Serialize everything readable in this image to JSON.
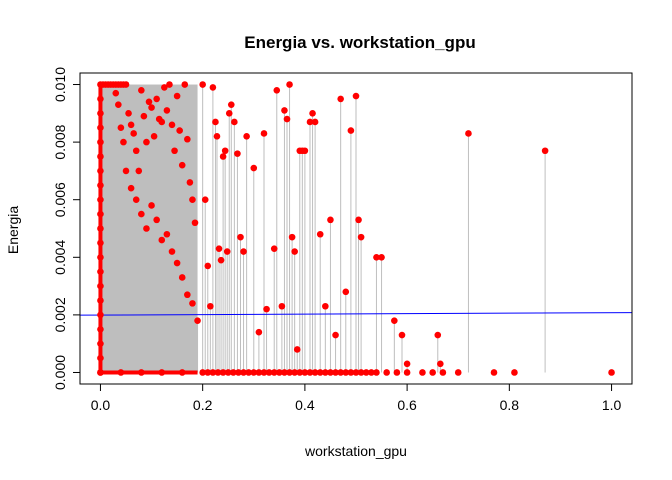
{
  "chart_data": {
    "type": "scatter",
    "title": "Energia vs. workstation_gpu",
    "xlabel": "workstation_gpu",
    "ylabel": "Energia",
    "xlim": [
      -0.04,
      1.04
    ],
    "ylim": [
      -0.0004,
      0.0104
    ],
    "x_ticks": [
      0.0,
      0.2,
      0.4,
      0.6,
      0.8,
      1.0
    ],
    "x_tick_labels": [
      "0.0",
      "0.2",
      "0.4",
      "0.6",
      "0.8",
      "1.0"
    ],
    "y_ticks": [
      0.0,
      0.002,
      0.004,
      0.006,
      0.008,
      0.01
    ],
    "y_tick_labels": [
      "0.000",
      "0.002",
      "0.004",
      "0.006",
      "0.008",
      "0.010"
    ],
    "grid": false,
    "colors": {
      "points": "#ff0000",
      "drop_lines": "#bebebe",
      "regression": "#0000ff"
    },
    "regression_line": {
      "x": [
        -0.04,
        1.04
      ],
      "y": [
        0.00199,
        0.00208
      ]
    },
    "dense_band": {
      "x_range": [
        0.0,
        0.19
      ],
      "y_range": [
        0.0,
        0.01
      ]
    },
    "points": [
      {
        "x": 0.0,
        "y": 0.01
      },
      {
        "x": 0.0,
        "y": 0.0095
      },
      {
        "x": 0.0,
        "y": 0.009
      },
      {
        "x": 0.0,
        "y": 0.0085
      },
      {
        "x": 0.0,
        "y": 0.008
      },
      {
        "x": 0.0,
        "y": 0.0075
      },
      {
        "x": 0.0,
        "y": 0.007
      },
      {
        "x": 0.0,
        "y": 0.0065
      },
      {
        "x": 0.0,
        "y": 0.006
      },
      {
        "x": 0.0,
        "y": 0.0055
      },
      {
        "x": 0.0,
        "y": 0.005
      },
      {
        "x": 0.0,
        "y": 0.0045
      },
      {
        "x": 0.0,
        "y": 0.004
      },
      {
        "x": 0.0,
        "y": 0.0035
      },
      {
        "x": 0.0,
        "y": 0.003
      },
      {
        "x": 0.0,
        "y": 0.0025
      },
      {
        "x": 0.0,
        "y": 0.002
      },
      {
        "x": 0.0,
        "y": 0.0015
      },
      {
        "x": 0.0,
        "y": 0.001
      },
      {
        "x": 0.0,
        "y": 0.0005
      },
      {
        "x": 0.0,
        "y": 0.0
      },
      {
        "x": 0.005,
        "y": 0.01
      },
      {
        "x": 0.01,
        "y": 0.01
      },
      {
        "x": 0.015,
        "y": 0.01
      },
      {
        "x": 0.02,
        "y": 0.01
      },
      {
        "x": 0.025,
        "y": 0.01
      },
      {
        "x": 0.03,
        "y": 0.01
      },
      {
        "x": 0.035,
        "y": 0.01
      },
      {
        "x": 0.04,
        "y": 0.01
      },
      {
        "x": 0.045,
        "y": 0.01
      },
      {
        "x": 0.05,
        "y": 0.01
      },
      {
        "x": 0.03,
        "y": 0.0097
      },
      {
        "x": 0.035,
        "y": 0.0093
      },
      {
        "x": 0.04,
        "y": 0.0085
      },
      {
        "x": 0.045,
        "y": 0.008
      },
      {
        "x": 0.055,
        "y": 0.009
      },
      {
        "x": 0.06,
        "y": 0.0086
      },
      {
        "x": 0.065,
        "y": 0.0083
      },
      {
        "x": 0.07,
        "y": 0.0077
      },
      {
        "x": 0.075,
        "y": 0.007
      },
      {
        "x": 0.08,
        "y": 0.0098
      },
      {
        "x": 0.085,
        "y": 0.0089
      },
      {
        "x": 0.09,
        "y": 0.008
      },
      {
        "x": 0.095,
        "y": 0.0094
      },
      {
        "x": 0.1,
        "y": 0.0092
      },
      {
        "x": 0.105,
        "y": 0.0082
      },
      {
        "x": 0.11,
        "y": 0.0095
      },
      {
        "x": 0.115,
        "y": 0.0088
      },
      {
        "x": 0.12,
        "y": 0.0087
      },
      {
        "x": 0.125,
        "y": 0.0099
      },
      {
        "x": 0.13,
        "y": 0.0091
      },
      {
        "x": 0.135,
        "y": 0.01
      },
      {
        "x": 0.14,
        "y": 0.0086
      },
      {
        "x": 0.145,
        "y": 0.0077
      },
      {
        "x": 0.15,
        "y": 0.0096
      },
      {
        "x": 0.155,
        "y": 0.0084
      },
      {
        "x": 0.16,
        "y": 0.0072
      },
      {
        "x": 0.165,
        "y": 0.01
      },
      {
        "x": 0.17,
        "y": 0.0081
      },
      {
        "x": 0.175,
        "y": 0.0066
      },
      {
        "x": 0.18,
        "y": 0.006
      },
      {
        "x": 0.185,
        "y": 0.0052
      },
      {
        "x": 0.05,
        "y": 0.007
      },
      {
        "x": 0.06,
        "y": 0.0064
      },
      {
        "x": 0.07,
        "y": 0.006
      },
      {
        "x": 0.08,
        "y": 0.0055
      },
      {
        "x": 0.09,
        "y": 0.005
      },
      {
        "x": 0.1,
        "y": 0.0058
      },
      {
        "x": 0.11,
        "y": 0.0053
      },
      {
        "x": 0.12,
        "y": 0.0046
      },
      {
        "x": 0.13,
        "y": 0.0048
      },
      {
        "x": 0.14,
        "y": 0.0042
      },
      {
        "x": 0.15,
        "y": 0.0038
      },
      {
        "x": 0.16,
        "y": 0.0033
      },
      {
        "x": 0.17,
        "y": 0.0027
      },
      {
        "x": 0.18,
        "y": 0.0024
      },
      {
        "x": 0.19,
        "y": 0.0018
      },
      {
        "x": 0.2,
        "y": 0.01
      },
      {
        "x": 0.205,
        "y": 0.006
      },
      {
        "x": 0.21,
        "y": 0.0037
      },
      {
        "x": 0.215,
        "y": 0.0023
      },
      {
        "x": 0.22,
        "y": 0.0099
      },
      {
        "x": 0.225,
        "y": 0.0087
      },
      {
        "x": 0.228,
        "y": 0.0082
      },
      {
        "x": 0.232,
        "y": 0.0043
      },
      {
        "x": 0.236,
        "y": 0.0039
      },
      {
        "x": 0.24,
        "y": 0.0075
      },
      {
        "x": 0.244,
        "y": 0.0077
      },
      {
        "x": 0.248,
        "y": 0.0042
      },
      {
        "x": 0.252,
        "y": 0.009
      },
      {
        "x": 0.256,
        "y": 0.0093
      },
      {
        "x": 0.262,
        "y": 0.0087
      },
      {
        "x": 0.268,
        "y": 0.0076
      },
      {
        "x": 0.274,
        "y": 0.0047
      },
      {
        "x": 0.28,
        "y": 0.0042
      },
      {
        "x": 0.286,
        "y": 0.0082
      },
      {
        "x": 0.3,
        "y": 0.0071
      },
      {
        "x": 0.31,
        "y": 0.0014
      },
      {
        "x": 0.32,
        "y": 0.0083
      },
      {
        "x": 0.325,
        "y": 0.0022
      },
      {
        "x": 0.34,
        "y": 0.0043
      },
      {
        "x": 0.345,
        "y": 0.0098
      },
      {
        "x": 0.355,
        "y": 0.0023
      },
      {
        "x": 0.36,
        "y": 0.0091
      },
      {
        "x": 0.365,
        "y": 0.0088
      },
      {
        "x": 0.37,
        "y": 0.01
      },
      {
        "x": 0.375,
        "y": 0.0047
      },
      {
        "x": 0.38,
        "y": 0.0042
      },
      {
        "x": 0.385,
        "y": 0.0008
      },
      {
        "x": 0.39,
        "y": 0.0077
      },
      {
        "x": 0.395,
        "y": 0.0077
      },
      {
        "x": 0.4,
        "y": 0.0077
      },
      {
        "x": 0.41,
        "y": 0.0087
      },
      {
        "x": 0.415,
        "y": 0.009
      },
      {
        "x": 0.42,
        "y": 0.0087
      },
      {
        "x": 0.43,
        "y": 0.0048
      },
      {
        "x": 0.44,
        "y": 0.0023
      },
      {
        "x": 0.45,
        "y": 0.0053
      },
      {
        "x": 0.46,
        "y": 0.0013
      },
      {
        "x": 0.47,
        "y": 0.0095
      },
      {
        "x": 0.48,
        "y": 0.0028
      },
      {
        "x": 0.49,
        "y": 0.0084
      },
      {
        "x": 0.5,
        "y": 0.0096
      },
      {
        "x": 0.505,
        "y": 0.0053
      },
      {
        "x": 0.51,
        "y": 0.0047
      },
      {
        "x": 0.54,
        "y": 0.004
      },
      {
        "x": 0.55,
        "y": 0.004
      },
      {
        "x": 0.575,
        "y": 0.0018
      },
      {
        "x": 0.59,
        "y": 0.0013
      },
      {
        "x": 0.6,
        "y": 0.0003
      },
      {
        "x": 0.66,
        "y": 0.0013
      },
      {
        "x": 0.665,
        "y": 0.0003
      },
      {
        "x": 0.72,
        "y": 0.0083
      },
      {
        "x": 0.87,
        "y": 0.0077
      },
      {
        "x": 0.0,
        "y": 0.0
      },
      {
        "x": 0.04,
        "y": 0.0
      },
      {
        "x": 0.08,
        "y": 0.0
      },
      {
        "x": 0.12,
        "y": 0.0
      },
      {
        "x": 0.16,
        "y": 0.0
      },
      {
        "x": 0.2,
        "y": 0.0
      },
      {
        "x": 0.21,
        "y": 0.0
      },
      {
        "x": 0.22,
        "y": 0.0
      },
      {
        "x": 0.23,
        "y": 0.0
      },
      {
        "x": 0.24,
        "y": 0.0
      },
      {
        "x": 0.25,
        "y": 0.0
      },
      {
        "x": 0.26,
        "y": 0.0
      },
      {
        "x": 0.27,
        "y": 0.0
      },
      {
        "x": 0.28,
        "y": 0.0
      },
      {
        "x": 0.29,
        "y": 0.0
      },
      {
        "x": 0.3,
        "y": 0.0
      },
      {
        "x": 0.31,
        "y": 0.0
      },
      {
        "x": 0.32,
        "y": 0.0
      },
      {
        "x": 0.33,
        "y": 0.0
      },
      {
        "x": 0.34,
        "y": 0.0
      },
      {
        "x": 0.35,
        "y": 0.0
      },
      {
        "x": 0.36,
        "y": 0.0
      },
      {
        "x": 0.37,
        "y": 0.0
      },
      {
        "x": 0.38,
        "y": 0.0
      },
      {
        "x": 0.39,
        "y": 0.0
      },
      {
        "x": 0.4,
        "y": 0.0
      },
      {
        "x": 0.41,
        "y": 0.0
      },
      {
        "x": 0.42,
        "y": 0.0
      },
      {
        "x": 0.43,
        "y": 0.0
      },
      {
        "x": 0.44,
        "y": 0.0
      },
      {
        "x": 0.45,
        "y": 0.0
      },
      {
        "x": 0.46,
        "y": 0.0
      },
      {
        "x": 0.47,
        "y": 0.0
      },
      {
        "x": 0.48,
        "y": 0.0
      },
      {
        "x": 0.49,
        "y": 0.0
      },
      {
        "x": 0.5,
        "y": 0.0
      },
      {
        "x": 0.51,
        "y": 0.0
      },
      {
        "x": 0.52,
        "y": 0.0
      },
      {
        "x": 0.53,
        "y": 0.0
      },
      {
        "x": 0.54,
        "y": 0.0
      },
      {
        "x": 0.56,
        "y": 0.0
      },
      {
        "x": 0.58,
        "y": 0.0
      },
      {
        "x": 0.6,
        "y": 0.0
      },
      {
        "x": 0.63,
        "y": 0.0
      },
      {
        "x": 0.65,
        "y": 0.0
      },
      {
        "x": 0.67,
        "y": 0.0
      },
      {
        "x": 0.7,
        "y": 0.0
      },
      {
        "x": 0.77,
        "y": 0.0
      },
      {
        "x": 0.81,
        "y": 0.0
      },
      {
        "x": 1.0,
        "y": 0.0
      }
    ]
  }
}
